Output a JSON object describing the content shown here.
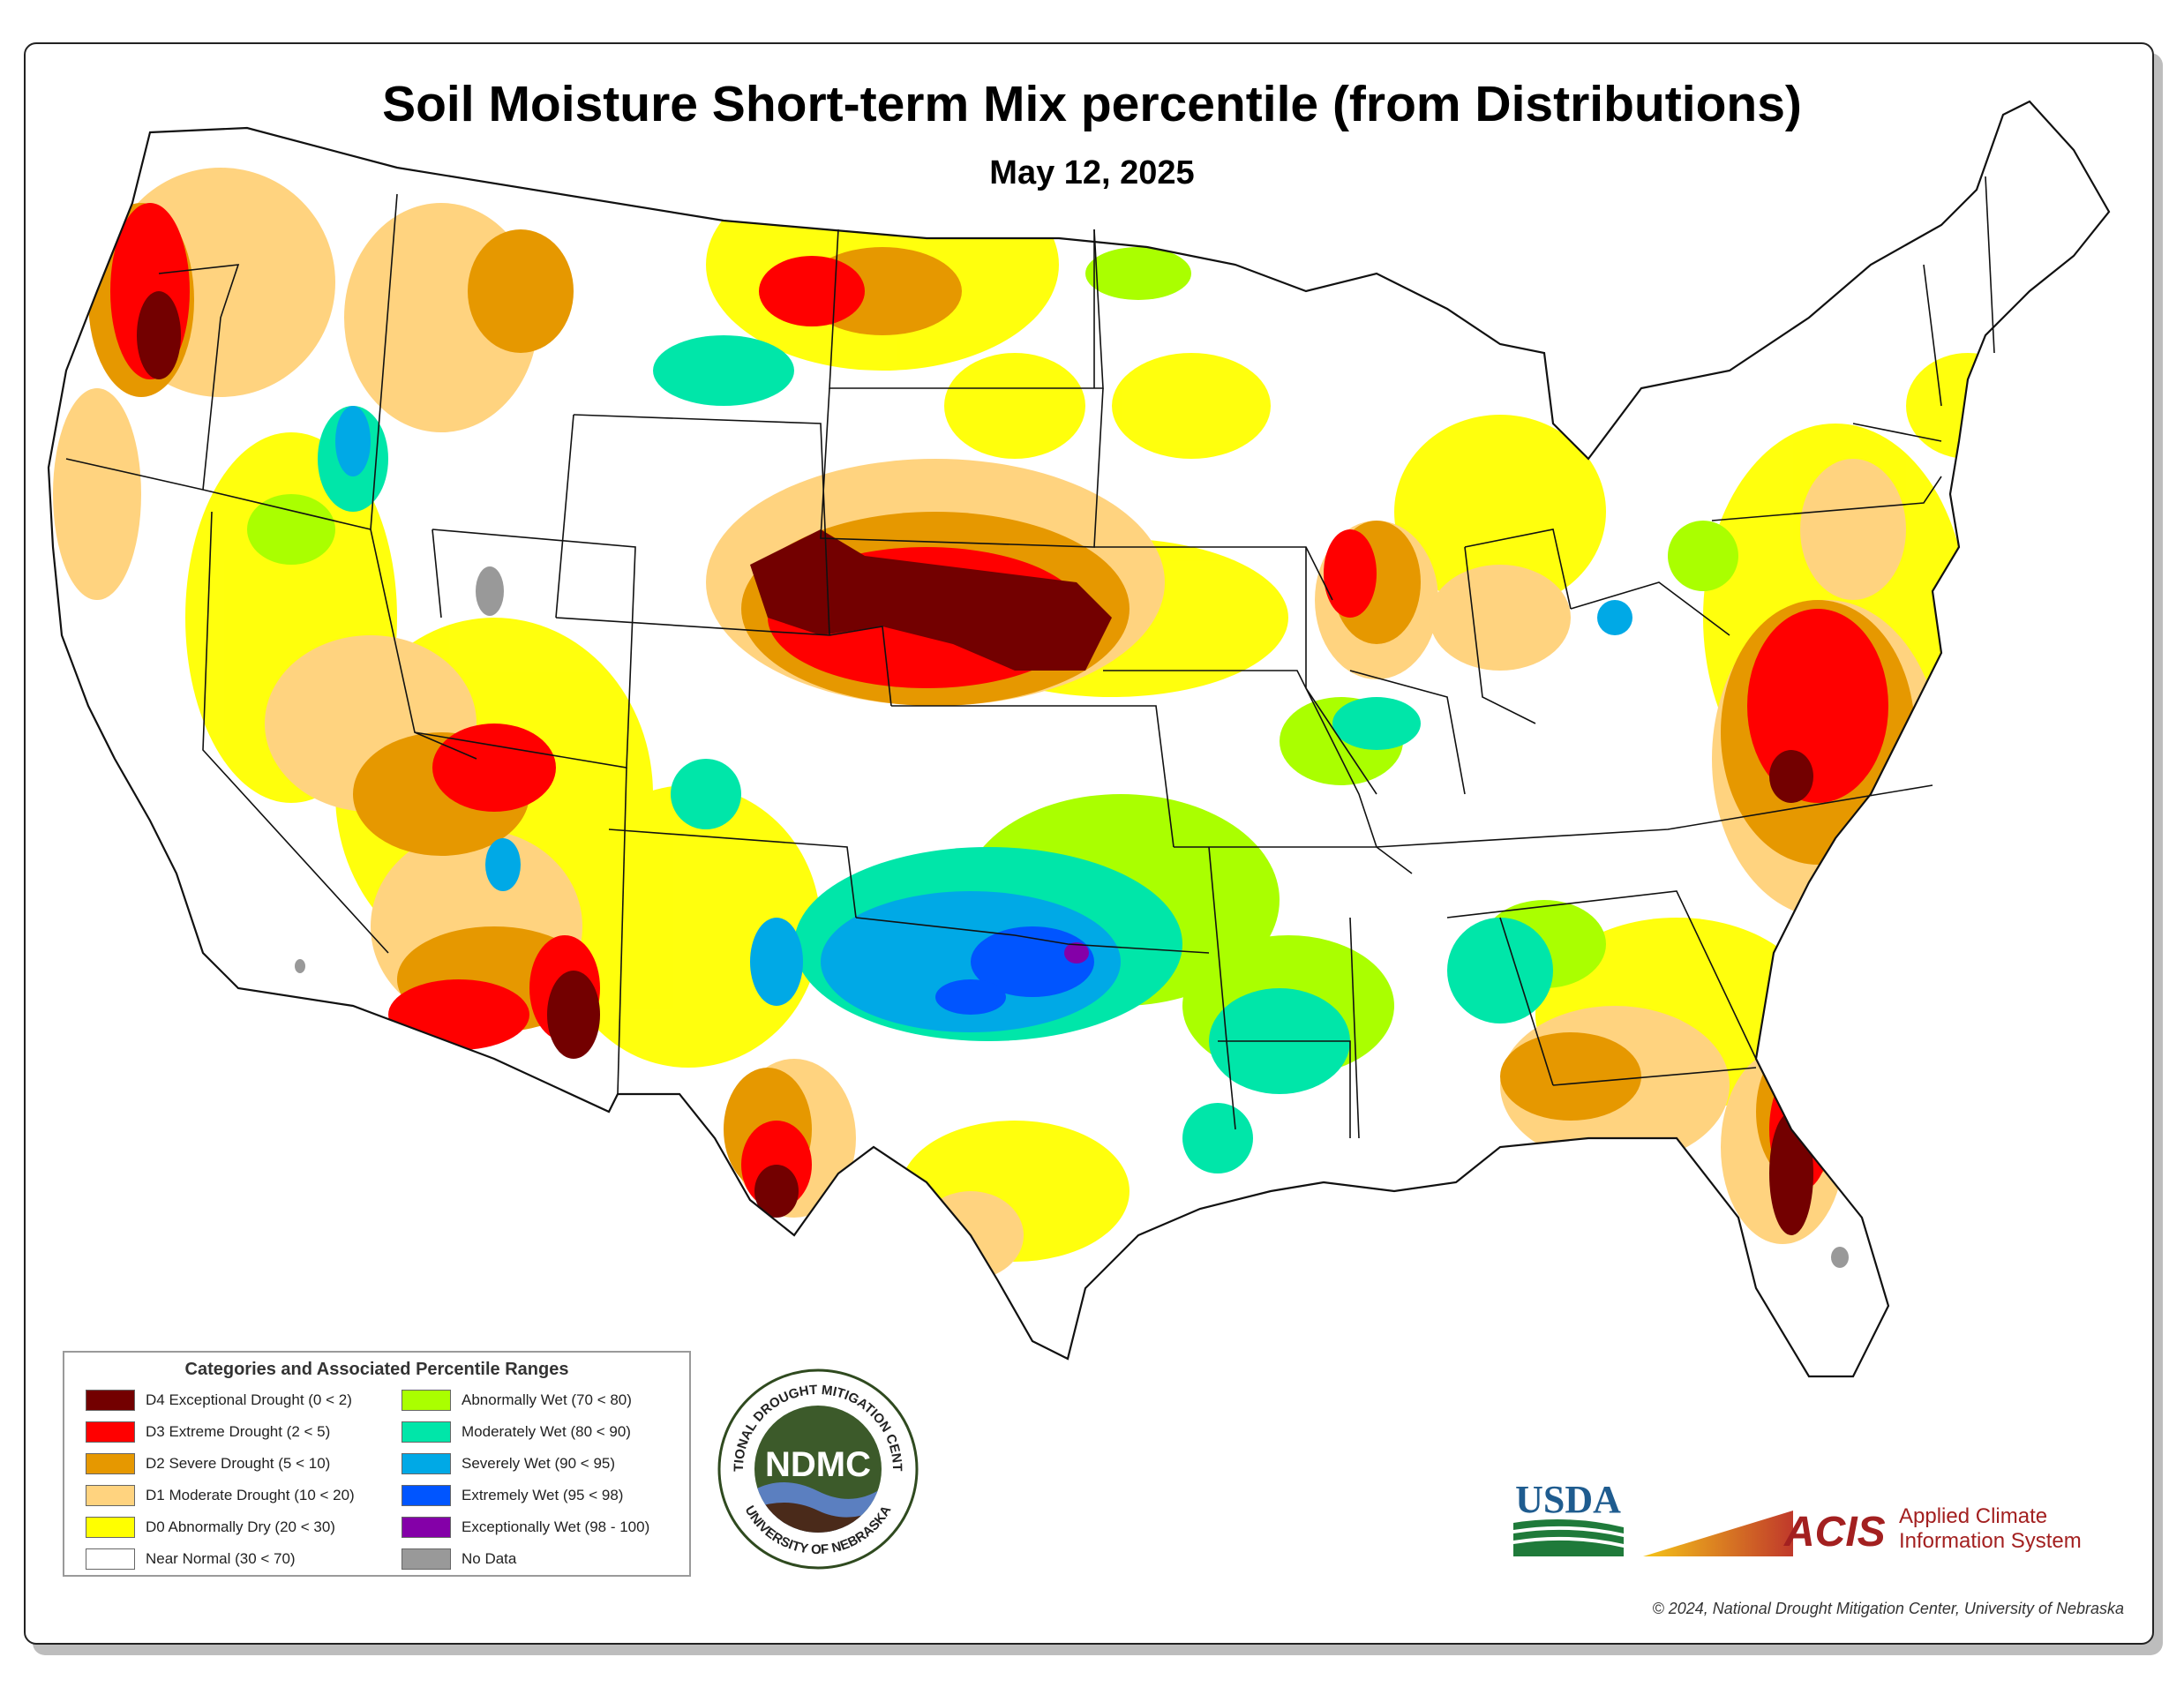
{
  "title": "Soil Moisture Short-term Mix percentile (from Distributions)",
  "date": "May 12, 2025",
  "legend": {
    "title": "Categories and Associated Percentile Ranges",
    "items": [
      {
        "label": "D4 Exceptional Drought (0 < 2)",
        "color": "#730000"
      },
      {
        "label": "D3 Extreme Drought (2 < 5)",
        "color": "#ff0000"
      },
      {
        "label": "D2 Severe Drought (5 < 10)",
        "color": "#e69800"
      },
      {
        "label": "D1 Moderate Drought (10 < 20)",
        "color": "#ffd37f"
      },
      {
        "label": "D0 Abnormally Dry (20 < 30)",
        "color": "#ffff00"
      },
      {
        "label": "Near Normal (30 < 70)",
        "color": "#ffffff"
      },
      {
        "label": "Abnormally Wet (70 < 80)",
        "color": "#aaff00"
      },
      {
        "label": "Moderately Wet (80 < 90)",
        "color": "#00e6a9"
      },
      {
        "label": "Severely Wet (90 < 95)",
        "color": "#00a9e6"
      },
      {
        "label": "Extremely Wet (95 < 98)",
        "color": "#0055ff"
      },
      {
        "label": "Exceptionally Wet (98 - 100)",
        "color": "#8400a8"
      },
      {
        "label": "No Data",
        "color": "#999999"
      }
    ]
  },
  "logos": {
    "ndmc": {
      "top": "NATIONAL DROUGHT MITIGATION CENTER",
      "center": "NDMC",
      "bottom": "UNIVERSITY OF NEBRASKA"
    },
    "usda": "USDA",
    "acis": {
      "short": "ACIS",
      "line1": "Applied Climate",
      "line2": "Information System"
    }
  },
  "copyright": "© 2024, National Drought Mitigation Center, University of Nebraska"
}
